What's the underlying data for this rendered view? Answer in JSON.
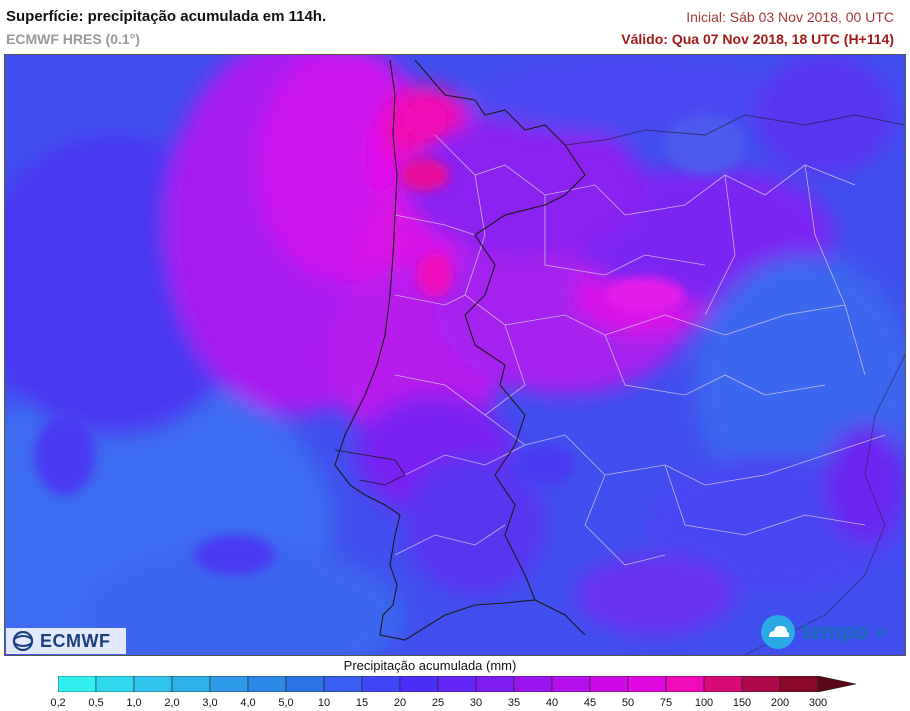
{
  "header": {
    "title": "Superfície: precipitação acumulada em 114h.",
    "model": "ECMWF HRES (0.1°)",
    "initial": "Inicial: Sáb 03 Nov 2018, 00 UTC",
    "valid": "Válido: Qua 07 Nov 2018, 18 UTC (H+114)"
  },
  "logos": {
    "ecmwf": "ECMWF",
    "tempo": "tempo",
    "tempo_suffix": ".pt"
  },
  "legend": {
    "title": "Precipitação acumulada (mm)",
    "unit": "mm",
    "labels": [
      "0,2",
      "0,5",
      "1,0",
      "2,0",
      "3,0",
      "4,0",
      "5,0",
      "10",
      "15",
      "20",
      "25",
      "30",
      "35",
      "40",
      "45",
      "50",
      "75",
      "100",
      "150",
      "200",
      "300"
    ],
    "colors": [
      "#33f0f0",
      "#30d8ee",
      "#2fc4ec",
      "#2eb0ea",
      "#2d9ce8",
      "#2c88e6",
      "#2b74e4",
      "#3a5ef0",
      "#3e46f5",
      "#4a2ef7",
      "#6424f5",
      "#7e1cf3",
      "#9a14f0",
      "#b40eec",
      "#cc0ae6",
      "#e008de",
      "#f00ab8",
      "#d80a78",
      "#b00a4a",
      "#8a0828"
    ],
    "arrow_color": "#5a0818"
  },
  "map": {
    "ocean_color": "#3f5af0",
    "heavy_color": "#d816e6",
    "border_color": "#1a1a1a",
    "admin_color": "#d8c8e0"
  }
}
